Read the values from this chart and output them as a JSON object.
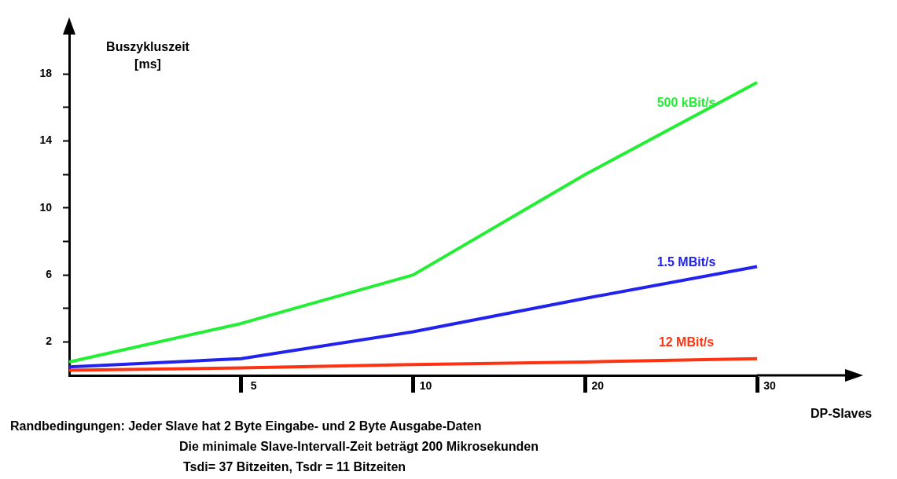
{
  "chart_data": {
    "type": "line",
    "ylabel": "Buszykluszeit\n[ms]",
    "xlabel": "DP-Slaves",
    "categories": [
      null,
      "5",
      "10",
      "20",
      "30"
    ],
    "series": [
      {
        "name": "500 kBit/s",
        "color": "#22ee33",
        "values": [
          0.8,
          3.1,
          6.0,
          12.0,
          17.5
        ]
      },
      {
        "name": "1.5 MBit/s",
        "color": "#2222ee",
        "values": [
          0.5,
          1.0,
          2.6,
          4.6,
          6.5
        ]
      },
      {
        "name": "12 MBit/s",
        "color": "#ff3311",
        "values": [
          0.3,
          0.45,
          0.65,
          0.8,
          1.0
        ]
      }
    ],
    "ylim": [
      0,
      21
    ],
    "yticks": [
      2,
      {
        "value": 4,
        "label": null
      },
      6,
      {
        "value": 8,
        "label": null
      },
      10,
      {
        "value": 12,
        "label": null
      },
      14,
      {
        "value": 16,
        "label": null
      },
      18
    ],
    "grid": false,
    "legend": false,
    "marker": "none",
    "line_style": "solid",
    "annotations": [
      "Randbedingungen: Jeder Slave hat 2 Byte Eingabe- und 2 Byte Ausgabe-Daten",
      "Die minimale Slave-Intervall-Zeit beträgt 200 Mikrosekunden",
      "Tsdi= 37 Bitzeiten, Tsdr = 11 Bitzeiten"
    ]
  }
}
